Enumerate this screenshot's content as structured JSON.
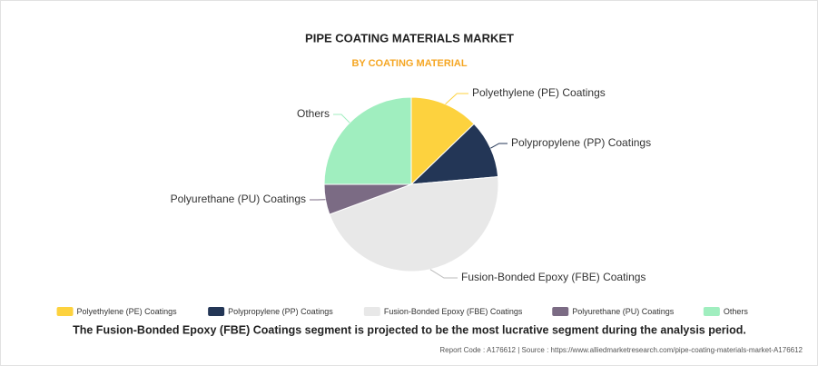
{
  "chart_data": {
    "type": "pie",
    "title": "PIPE COATING MATERIALS MARKET",
    "subtitle": "BY COATING MATERIAL",
    "categories": [
      "Polyethylene (PE) Coatings",
      "Polypropylene (PP) Coatings",
      "Fusion-Bonded Epoxy (FBE) Coatings",
      "Polyurethane (PU) Coatings",
      "Others"
    ],
    "values": [
      12.8,
      10.8,
      45.8,
      5.6,
      25.0
    ],
    "colors": [
      "#fdd23e",
      "#233656",
      "#e8e8e8",
      "#7b6b84",
      "#a0eebf"
    ],
    "legend": "bottom"
  },
  "caption": "The Fusion-Bonded Epoxy (FBE) Coatings segment is projected to be the most lucrative segment during the analysis period.",
  "source": "Report Code : A176612  |  Source : https://www.alliedmarketresearch.com/pipe-coating-materials-market-A176612"
}
